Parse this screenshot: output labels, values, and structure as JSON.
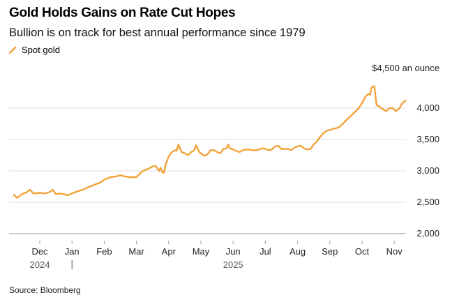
{
  "chart_data": {
    "type": "line",
    "title": "Gold Holds Gains on Rate Cut Hopes",
    "subtitle": "Bullion is on track for best annual performance since 1979",
    "legend": [
      "Spot gold"
    ],
    "unit_label": "$4,500 an ounce",
    "ylim": [
      2000,
      4500
    ],
    "yticks": [
      {
        "value": 2000,
        "label": "2,000"
      },
      {
        "value": 2500,
        "label": "2,500"
      },
      {
        "value": 3000,
        "label": "3,000"
      },
      {
        "value": 3500,
        "label": "3,500"
      },
      {
        "value": 4000,
        "label": "4,000"
      }
    ],
    "x_months": [
      {
        "label": "Dec",
        "index": 0
      },
      {
        "label": "Jan",
        "index": 1
      },
      {
        "label": "Feb",
        "index": 2
      },
      {
        "label": "Mar",
        "index": 3
      },
      {
        "label": "Apr",
        "index": 4
      },
      {
        "label": "May",
        "index": 5
      },
      {
        "label": "Jun",
        "index": 6
      },
      {
        "label": "Jul",
        "index": 7
      },
      {
        "label": "Aug",
        "index": 8
      },
      {
        "label": "Sep",
        "index": 9
      },
      {
        "label": "Oct",
        "index": 10
      },
      {
        "label": "Nov",
        "index": 11
      }
    ],
    "years": [
      {
        "label": "2024",
        "index": 0
      },
      {
        "label": "2025",
        "index": 6
      }
    ],
    "series": [
      {
        "name": "Spot gold",
        "color": "#f2a33a",
        "points": [
          [
            -0.8,
            2620
          ],
          [
            -0.7,
            2570
          ],
          [
            -0.55,
            2630
          ],
          [
            -0.4,
            2660
          ],
          [
            -0.3,
            2700
          ],
          [
            -0.2,
            2640
          ],
          [
            0.0,
            2650
          ],
          [
            0.15,
            2640
          ],
          [
            0.3,
            2660
          ],
          [
            0.4,
            2700
          ],
          [
            0.5,
            2630
          ],
          [
            0.6,
            2640
          ],
          [
            0.75,
            2630
          ],
          [
            0.85,
            2610
          ],
          [
            1.0,
            2640
          ],
          [
            1.1,
            2660
          ],
          [
            1.2,
            2680
          ],
          [
            1.35,
            2700
          ],
          [
            1.5,
            2740
          ],
          [
            1.65,
            2770
          ],
          [
            1.8,
            2800
          ],
          [
            1.9,
            2820
          ],
          [
            2.0,
            2860
          ],
          [
            2.1,
            2880
          ],
          [
            2.2,
            2900
          ],
          [
            2.35,
            2910
          ],
          [
            2.5,
            2930
          ],
          [
            2.65,
            2910
          ],
          [
            2.8,
            2900
          ],
          [
            3.0,
            2900
          ],
          [
            3.1,
            2950
          ],
          [
            3.2,
            3000
          ],
          [
            3.3,
            3020
          ],
          [
            3.4,
            3040
          ],
          [
            3.5,
            3070
          ],
          [
            3.6,
            3080
          ],
          [
            3.7,
            3000
          ],
          [
            3.75,
            3050
          ],
          [
            3.8,
            2980
          ],
          [
            3.85,
            2970
          ],
          [
            3.92,
            3120
          ],
          [
            4.0,
            3230
          ],
          [
            4.1,
            3300
          ],
          [
            4.2,
            3330
          ],
          [
            4.25,
            3320
          ],
          [
            4.3,
            3420
          ],
          [
            4.4,
            3300
          ],
          [
            4.5,
            3280
          ],
          [
            4.6,
            3250
          ],
          [
            4.7,
            3300
          ],
          [
            4.8,
            3330
          ],
          [
            4.85,
            3410
          ],
          [
            4.95,
            3300
          ],
          [
            5.1,
            3240
          ],
          [
            5.2,
            3260
          ],
          [
            5.3,
            3330
          ],
          [
            5.4,
            3330
          ],
          [
            5.5,
            3300
          ],
          [
            5.6,
            3280
          ],
          [
            5.7,
            3350
          ],
          [
            5.8,
            3360
          ],
          [
            5.85,
            3420
          ],
          [
            5.9,
            3360
          ],
          [
            6.0,
            3340
          ],
          [
            6.1,
            3320
          ],
          [
            6.2,
            3300
          ],
          [
            6.3,
            3330
          ],
          [
            6.4,
            3340
          ],
          [
            6.5,
            3340
          ],
          [
            6.6,
            3330
          ],
          [
            6.7,
            3330
          ],
          [
            6.8,
            3340
          ],
          [
            6.9,
            3360
          ],
          [
            7.0,
            3350
          ],
          [
            7.1,
            3330
          ],
          [
            7.2,
            3340
          ],
          [
            7.3,
            3390
          ],
          [
            7.4,
            3400
          ],
          [
            7.5,
            3350
          ],
          [
            7.6,
            3350
          ],
          [
            7.7,
            3350
          ],
          [
            7.8,
            3330
          ],
          [
            7.9,
            3370
          ],
          [
            8.0,
            3390
          ],
          [
            8.1,
            3400
          ],
          [
            8.2,
            3360
          ],
          [
            8.3,
            3340
          ],
          [
            8.4,
            3350
          ],
          [
            8.5,
            3420
          ],
          [
            8.6,
            3470
          ],
          [
            8.7,
            3540
          ],
          [
            8.8,
            3600
          ],
          [
            8.9,
            3640
          ],
          [
            9.0,
            3650
          ],
          [
            9.1,
            3670
          ],
          [
            9.2,
            3680
          ],
          [
            9.3,
            3700
          ],
          [
            9.4,
            3750
          ],
          [
            9.5,
            3800
          ],
          [
            9.6,
            3850
          ],
          [
            9.7,
            3900
          ],
          [
            9.8,
            3950
          ],
          [
            9.9,
            4000
          ],
          [
            10.0,
            4080
          ],
          [
            10.1,
            4180
          ],
          [
            10.2,
            4230
          ],
          [
            10.25,
            4210
          ],
          [
            10.3,
            4330
          ],
          [
            10.38,
            4350
          ],
          [
            10.45,
            4050
          ],
          [
            10.55,
            4020
          ],
          [
            10.65,
            3980
          ],
          [
            10.75,
            3950
          ],
          [
            10.85,
            4000
          ],
          [
            10.95,
            4000
          ],
          [
            11.05,
            3950
          ],
          [
            11.15,
            3990
          ],
          [
            11.25,
            4080
          ],
          [
            11.35,
            4120
          ]
        ]
      }
    ],
    "source": "Source: Bloomberg"
  }
}
